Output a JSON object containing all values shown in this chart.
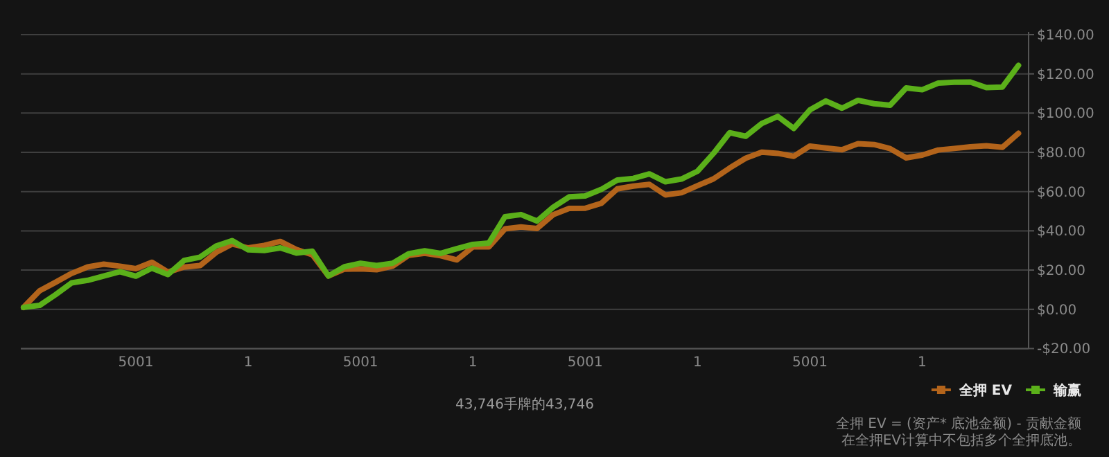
{
  "chart_data": {
    "type": "line",
    "xlabel": "43,746手牌的43,746",
    "annotations": [
      "全押 EV = (资产* 底池金额) - 贡献金额",
      "在全押EV计算中不包括多个全押底池。"
    ],
    "categories": [
      null,
      null,
      null,
      null,
      null,
      null,
      null,
      "5001",
      null,
      null,
      null,
      null,
      null,
      null,
      "1",
      null,
      null,
      null,
      null,
      null,
      null,
      "5001",
      null,
      null,
      null,
      null,
      null,
      null,
      "1",
      null,
      null,
      null,
      null,
      null,
      null,
      "5001",
      null,
      null,
      null,
      null,
      null,
      null,
      "1",
      null,
      null,
      null,
      null,
      null,
      null,
      "5001",
      null,
      null,
      null,
      null,
      null,
      null,
      "1",
      null,
      null,
      null,
      null,
      null,
      null
    ],
    "ylim": [
      -20,
      140
    ],
    "yticks": [
      {
        "value": -20,
        "label": "-$20.00"
      },
      {
        "value": 0,
        "label": "$0.00"
      },
      {
        "value": 20,
        "label": "$20.00"
      },
      {
        "value": 40,
        "label": "$40.00"
      },
      {
        "value": 60,
        "label": "$60.00"
      },
      {
        "value": 80,
        "label": "$80.00"
      },
      {
        "value": 100,
        "label": "$100.00"
      },
      {
        "value": 120,
        "label": "$120.00"
      },
      {
        "value": 140,
        "label": "$140.00"
      }
    ],
    "grid": "y",
    "legend": "bottom right",
    "line_style": "solid",
    "marker": "none",
    "series": [
      {
        "name": "全押 EV",
        "color": "#b3641b",
        "values": [
          1,
          9.4,
          13.8,
          18.3,
          21.6,
          23,
          22,
          20.7,
          24,
          19,
          21.5,
          22.3,
          29,
          33.3,
          31.3,
          32.6,
          34.6,
          30.5,
          27.8,
          17,
          20.5,
          20.6,
          20.2,
          22,
          27.5,
          28.6,
          27.3,
          25.2,
          31.8,
          31.8,
          41,
          42,
          41.2,
          48.2,
          51.4,
          51.5,
          54,
          61.4,
          62.8,
          63.7,
          58.3,
          59.4,
          63,
          66.5,
          72,
          77,
          80.1,
          79.5,
          78,
          83.2,
          82.2,
          81.3,
          84.4,
          84,
          81.9,
          77.2,
          78.6,
          81.2,
          82,
          82.8,
          83.4,
          82.6,
          89.7
        ]
      },
      {
        "name": "输赢",
        "color": "#5bb01a",
        "values": [
          1,
          2,
          7.5,
          13.5,
          14.8,
          17,
          19.2,
          16.9,
          21,
          17.7,
          24.9,
          26.6,
          32.3,
          35,
          30.3,
          30,
          31.3,
          28.7,
          29.6,
          17,
          21.7,
          23.5,
          22.3,
          23.5,
          28.3,
          29.8,
          28.5,
          30.9,
          33.1,
          33.8,
          47.2,
          48.3,
          45,
          52,
          57.3,
          57.8,
          61.1,
          65.9,
          66.7,
          69,
          65,
          66.4,
          70.4,
          79.5,
          90,
          88.2,
          94.7,
          98.3,
          92.2,
          101.6,
          106.2,
          102.5,
          106.5,
          104.8,
          104,
          112.8,
          111.9,
          115.3,
          115.7,
          115.8,
          113,
          113.3,
          124.3
        ]
      }
    ]
  }
}
